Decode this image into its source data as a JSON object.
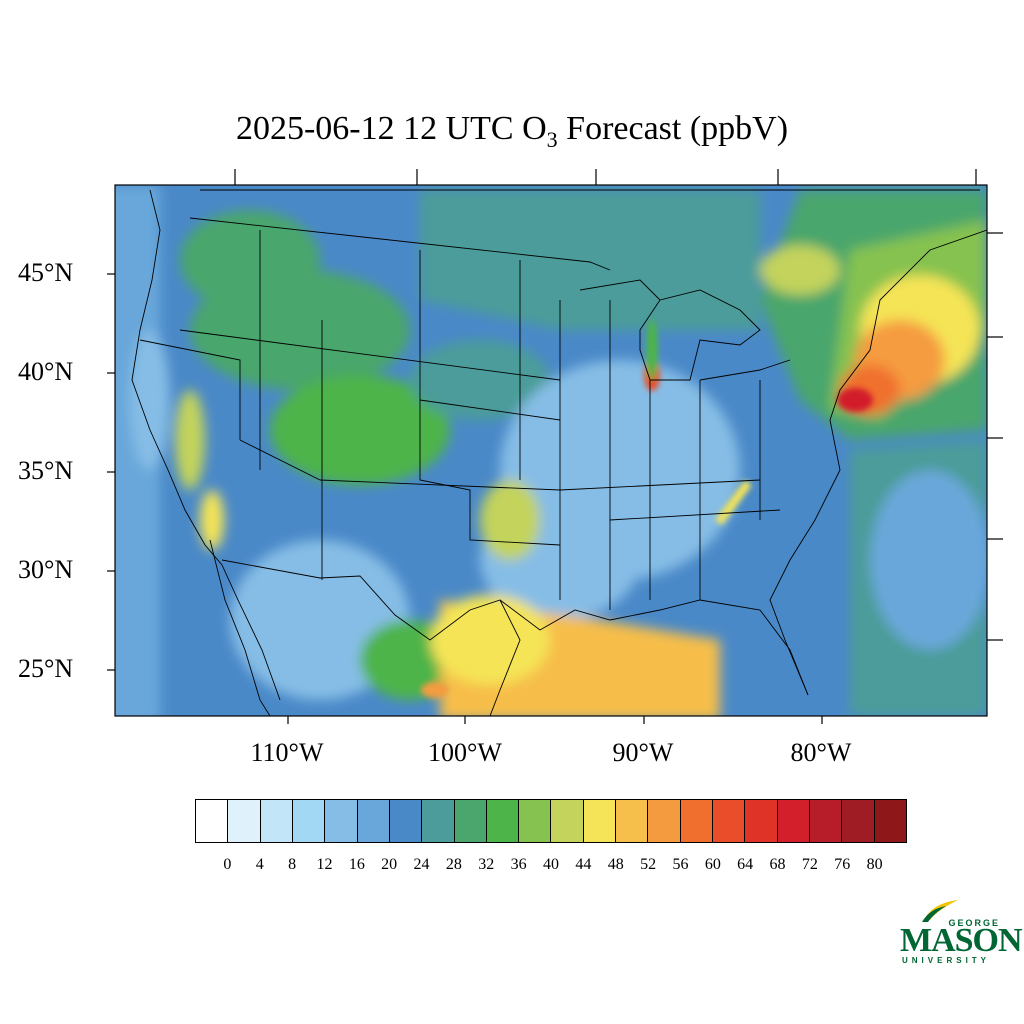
{
  "title": {
    "prefix": "2025-06-12 12 UTC O",
    "subscript": "3",
    "suffix": " Forecast (ppbV)"
  },
  "map": {
    "lat_labels": [
      "45°N",
      "40°N",
      "35°N",
      "30°N",
      "25°N"
    ],
    "lon_labels": [
      "110°W",
      "100°W",
      "90°W",
      "80°W"
    ]
  },
  "colorbar": {
    "colors": [
      "#ffffff",
      "#dff1fa",
      "#c2e6f7",
      "#a3d8f4",
      "#86bde6",
      "#69a7da",
      "#4a89c8",
      "#4b9c9a",
      "#4aa66c",
      "#4db44a",
      "#86c24f",
      "#c3d35b",
      "#f5e457",
      "#f6be4a",
      "#f59b3f",
      "#f06f2f",
      "#e94d2a",
      "#de3326",
      "#d21f2b",
      "#b71d28",
      "#a01c24",
      "#8d1719"
    ],
    "labels": [
      "0",
      "4",
      "8",
      "12",
      "16",
      "20",
      "24",
      "28",
      "32",
      "36",
      "40",
      "44",
      "48",
      "52",
      "56",
      "60",
      "64",
      "68",
      "72",
      "76",
      "80"
    ]
  },
  "logo": {
    "line1": "GEORGE",
    "line2": "MASON",
    "line3": "UNIVERSITY"
  },
  "icons": [
    "gmu-flame-icon"
  ]
}
